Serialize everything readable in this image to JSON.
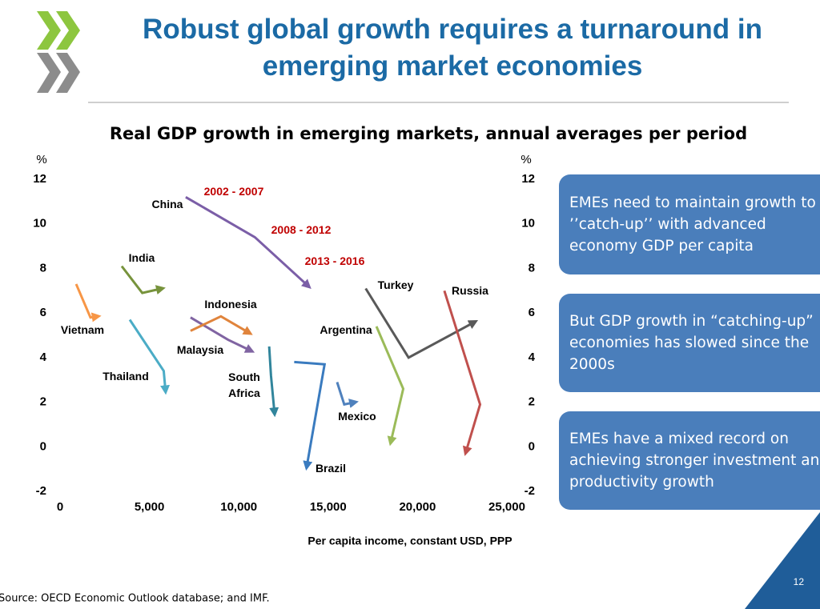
{
  "slide": {
    "title": "Robust global growth requires a turnaround in emerging market economies",
    "notes": [
      "EMEs need to maintain growth to ’’catch-up’’ with advanced economy GDP per capita",
      "But GDP growth in “catching-up” economies has slowed since the 2000s",
      "EMEs have a mixed record on achieving stronger investment and productivity growth"
    ],
    "source": "Source: OECD Economic Outlook database; and IMF.",
    "page": "12"
  },
  "chart_data": {
    "type": "line",
    "title": "Real GDP growth in emerging markets, annual averages per period",
    "xlabel": "Per capita income, constant USD, PPP",
    "ylabel": "%",
    "y2label": "%",
    "xlim": [
      0,
      25000
    ],
    "xticks": [
      0,
      {
        "value": 5000,
        "label": "5,000"
      },
      {
        "value": 10000,
        "label": "10,000"
      },
      {
        "value": 15000,
        "label": "15,000"
      },
      {
        "value": 20000,
        "label": "20,000"
      },
      {
        "value": 25000,
        "label": "25,000"
      }
    ],
    "ylim": [
      -2,
      12
    ],
    "yticks": [
      -2,
      0,
      2,
      4,
      6,
      8,
      10,
      12
    ],
    "y2lim": [
      -2,
      12
    ],
    "y2ticks": [
      -2,
      0,
      2,
      4,
      6,
      8,
      10,
      12
    ],
    "annotations": [
      "2002 - 2007",
      "2008 - 2012",
      "2013 - 2016"
    ],
    "series": [
      {
        "name": "China",
        "color": "#7b5ea7",
        "x": [
          7030,
          10900,
          13900
        ],
        "values": [
          11.2,
          9.4,
          7.2
        ]
      },
      {
        "name": "India",
        "color": "#77933c",
        "x": [
          3450,
          4600,
          5700
        ],
        "values": [
          8.1,
          6.9,
          7.1
        ]
      },
      {
        "name": "Vietnam",
        "color": "#f79646",
        "x": [
          900,
          1700,
          2100
        ],
        "values": [
          7.3,
          5.8,
          5.85
        ]
      },
      {
        "name": "Thailand",
        "color": "#4bacc6",
        "x": [
          3900,
          5800,
          5900
        ],
        "values": [
          5.7,
          3.4,
          2.5
        ]
      },
      {
        "name": "Malaysia",
        "color": "#8064a2",
        "x": [
          7300,
          9400,
          10700
        ],
        "values": [
          5.8,
          4.8,
          4.3
        ]
      },
      {
        "name": "Indonesia",
        "color": "#e0843c",
        "x": [
          7300,
          9000,
          10600
        ],
        "values": [
          5.2,
          5.85,
          5.1
        ]
      },
      {
        "name": "South Africa",
        "color": "#31859c",
        "x": [
          11700,
          11800,
          12000
        ],
        "values": [
          4.5,
          3.2,
          1.5
        ]
      },
      {
        "name": "Brazil",
        "color": "#3a7bbf",
        "x": [
          13100,
          14800,
          13800
        ],
        "values": [
          3.8,
          3.7,
          -0.9
        ]
      },
      {
        "name": "Mexico",
        "color": "#4f81bd",
        "x": [
          15500,
          15900,
          16500
        ],
        "values": [
          2.9,
          1.9,
          2.0
        ]
      },
      {
        "name": "Argentina",
        "color": "#9bbb59",
        "x": [
          17700,
          19200,
          18500
        ],
        "values": [
          5.4,
          2.6,
          0.2
        ]
      },
      {
        "name": "Turkey",
        "color": "#595959",
        "x": [
          17100,
          19500,
          23200
        ],
        "values": [
          7.1,
          4.0,
          5.6
        ]
      },
      {
        "name": "Russia",
        "color": "#c0504d",
        "x": [
          21500,
          23500,
          22700
        ],
        "values": [
          7.0,
          1.9,
          -0.25
        ]
      }
    ]
  }
}
